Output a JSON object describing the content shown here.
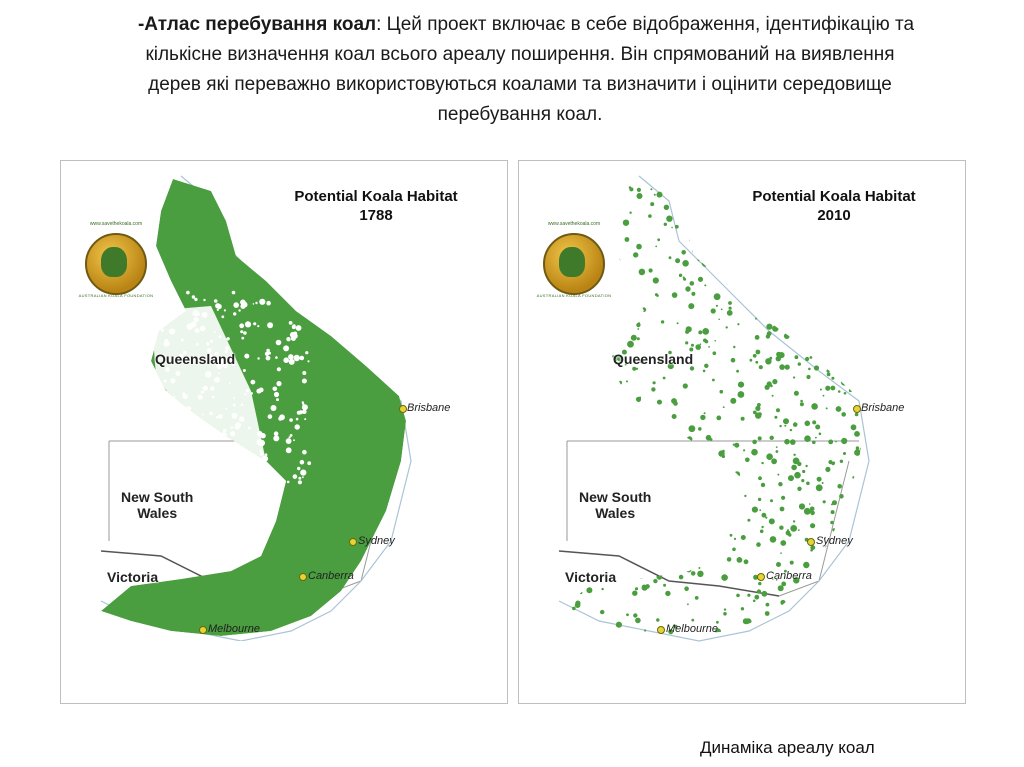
{
  "intro": {
    "bold": "-Атлас перебування коал",
    "line1_rest": ": Цей проект включає в себе відображення, ідентифікацію та",
    "line2": "кількісне визначення коал  всього ареалу поширення. Він спрямований на виявлення",
    "line3": "дерев які переважно використовуються коалами та визначити і оцінити середовище",
    "line4": "перебування коал."
  },
  "maps": [
    {
      "title_line1": "Potential Koala Habitat",
      "title_line2": "1788",
      "habitat_level": "dense",
      "habitat_color": "#4a9e3f"
    },
    {
      "title_line1": "Potential Koala Habitat",
      "title_line2": "2010",
      "habitat_level": "sparse",
      "habitat_color": "#4a9e3f"
    }
  ],
  "labels": {
    "queensland": "Queensland",
    "nsw_line1": "New South",
    "nsw_line2": "Wales",
    "victoria": "Victoria",
    "brisbane": "Brisbane",
    "sydney": "Sydney",
    "canberra": "Canberra",
    "melbourne": "Melbourne"
  },
  "logo": {
    "icon": "koala-foundation-logo-icon",
    "url_text": "www.savethekoala.com",
    "org_text": "AUSTRALIAN KOALA FOUNDATION"
  },
  "caption": "Динаміка ареалу коал"
}
